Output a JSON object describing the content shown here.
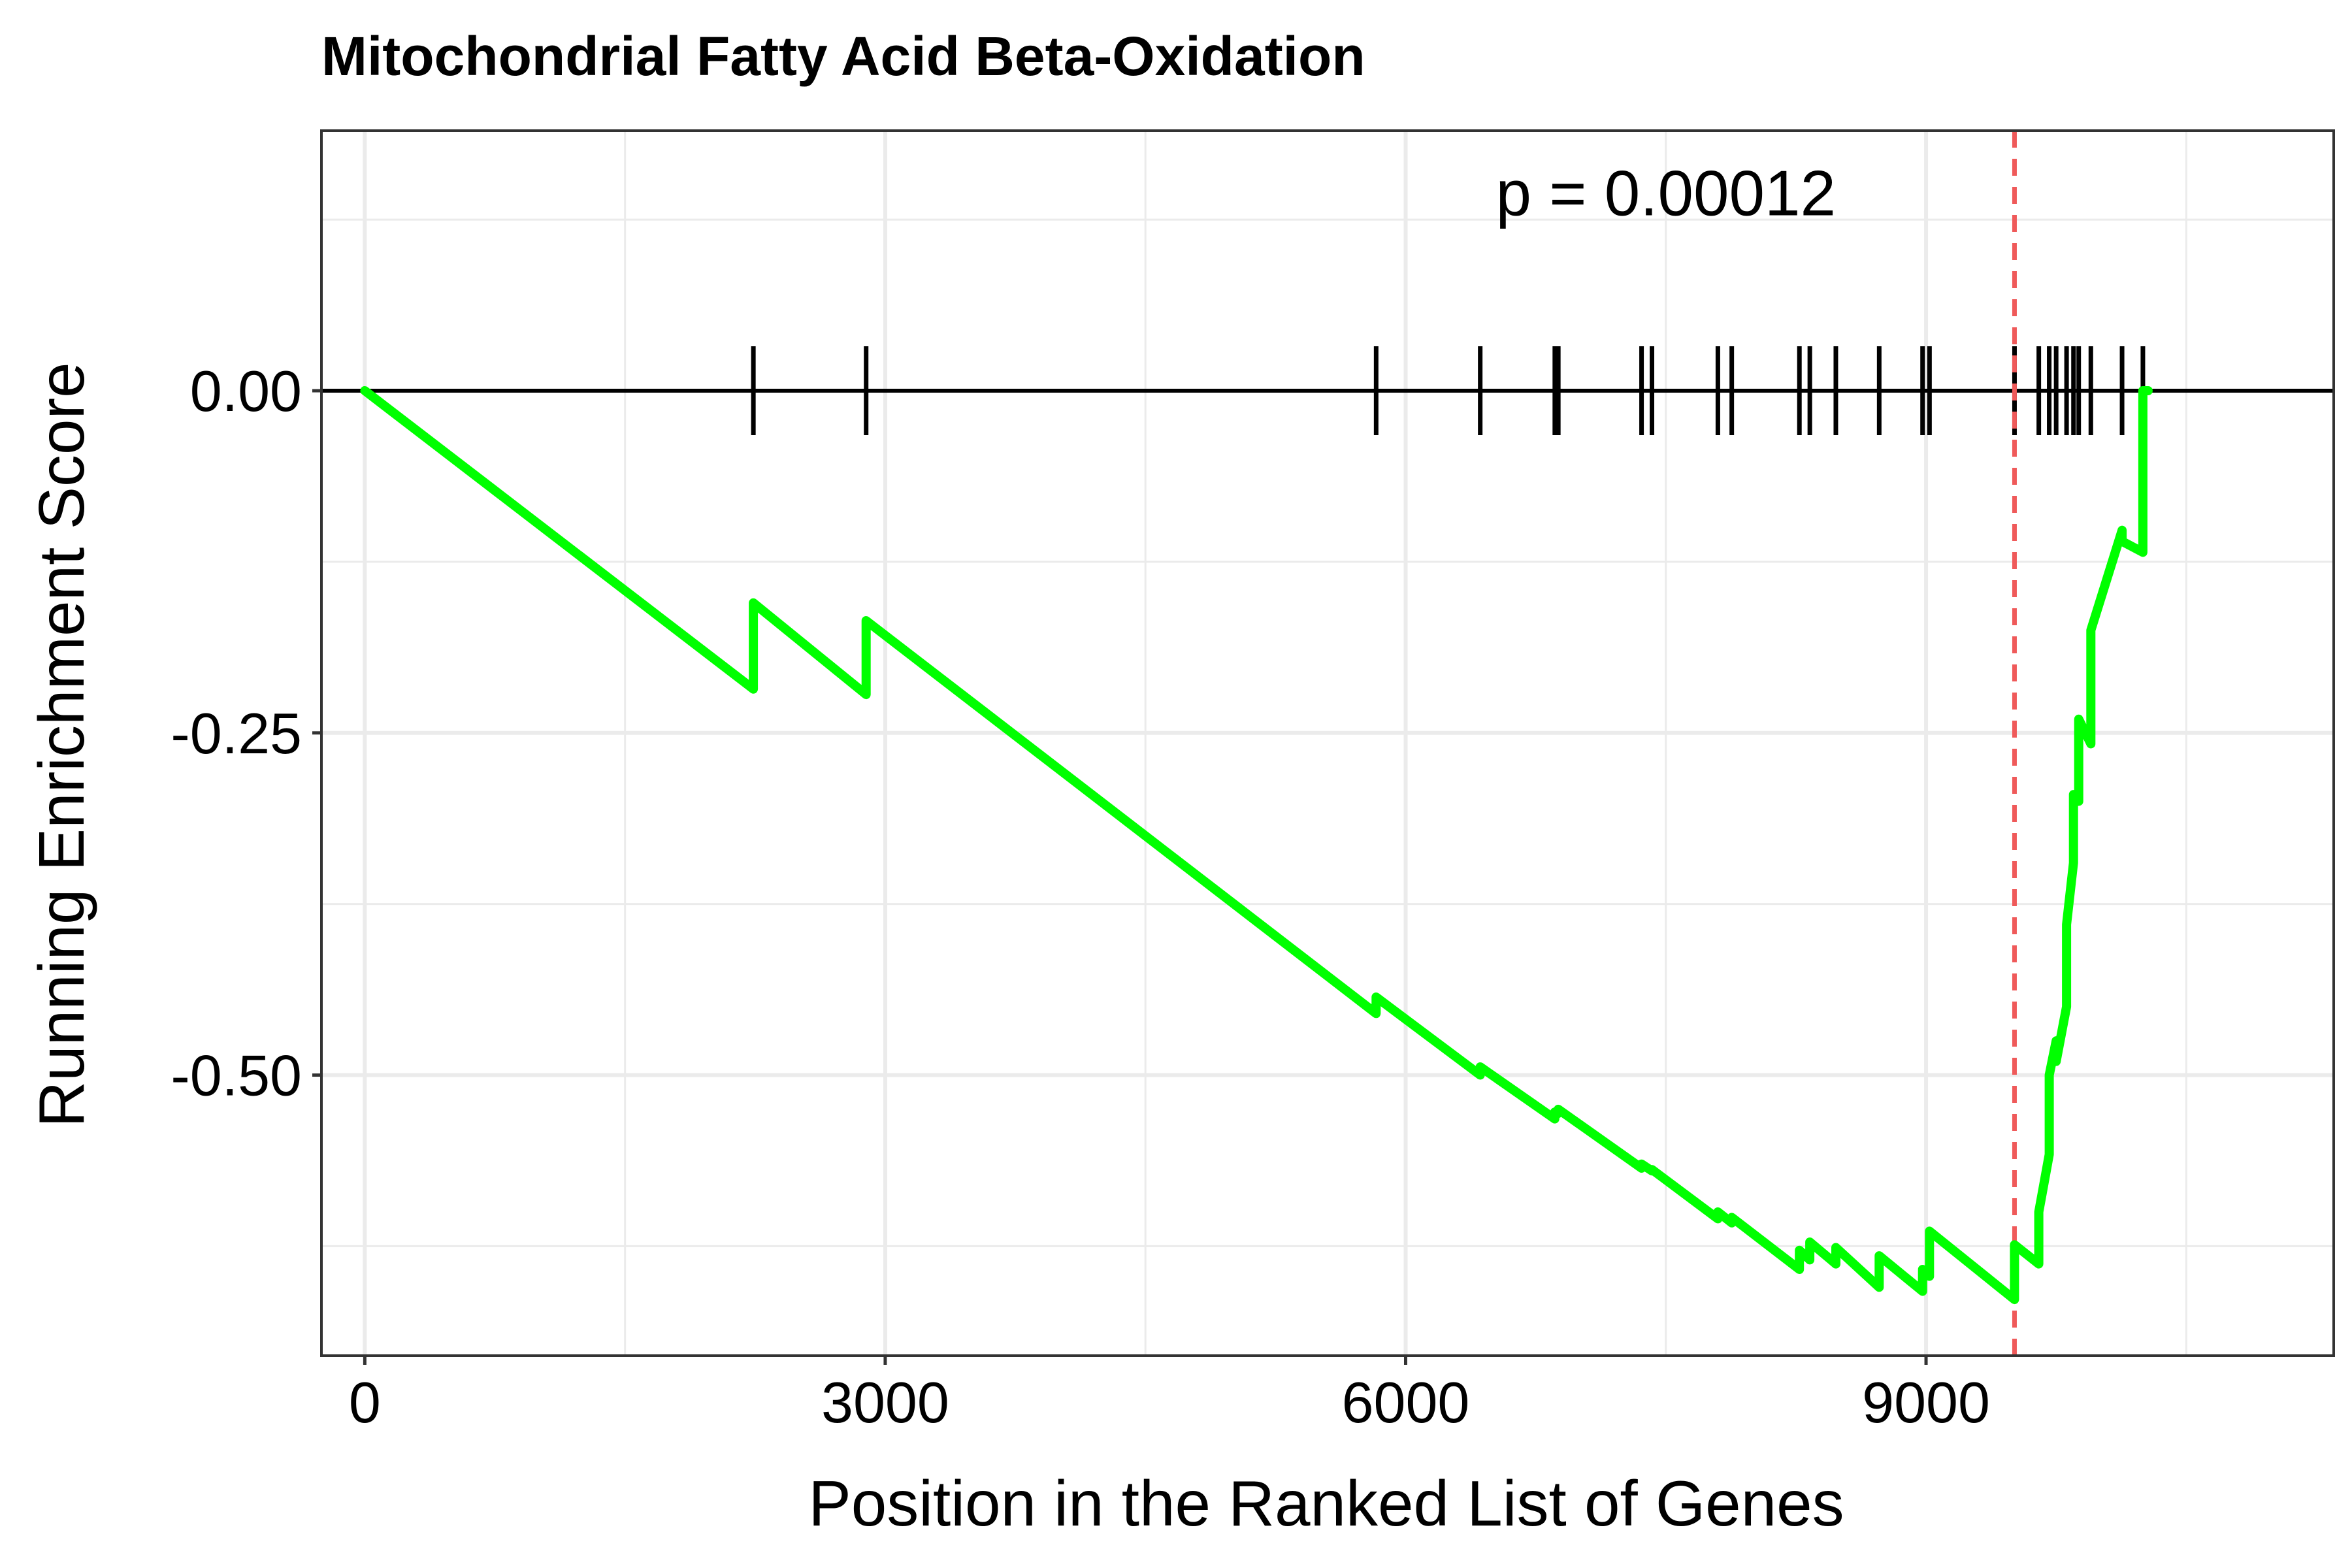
{
  "chart_data": {
    "type": "line",
    "title": "Mitochondrial Fatty Acid Beta-Oxidation",
    "xlabel": "Position in the Ranked List of Genes",
    "ylabel": "Running Enrichment Score",
    "xlim": [
      -250,
      11350
    ],
    "ylim": [
      -0.705,
      0.19
    ],
    "x_ticks": [
      0,
      3000,
      6000,
      9000
    ],
    "x_tick_labels": [
      "0",
      "3000",
      "6000",
      "9000"
    ],
    "y_ticks": [
      0,
      -0.25,
      -0.5
    ],
    "y_tick_labels": [
      "0.00",
      "-0.25",
      "-0.50"
    ],
    "x_minor": [
      1500,
      4500,
      7500,
      10500
    ],
    "y_minor": [
      0.125,
      -0.125,
      -0.375,
      -0.625
    ],
    "grid": true,
    "annotation": "p = 0.00012",
    "annotation_position": [
      7500,
      0.145
    ],
    "zero_line": 0,
    "max_deviation_x": 9510,
    "colors": {
      "line": "#00ff00",
      "dashed": "#ef5a5a",
      "hits": "#000000"
    },
    "hits": [
      2240,
      2890,
      5830,
      6430,
      6860,
      6880,
      7360,
      7420,
      7800,
      7880,
      8270,
      8330,
      8480,
      8730,
      8980,
      9020,
      9510,
      9650,
      9710,
      9750,
      9810,
      9850,
      9880,
      9950,
      10130,
      10250
    ],
    "series": [
      {
        "x": [
          0,
          2240,
          2240,
          2890,
          2890,
          5830,
          5830,
          6430,
          6430,
          6860,
          6860,
          6880,
          6880,
          7360,
          7360,
          7420,
          7420,
          7800,
          7800,
          7880,
          7880,
          8270,
          8270,
          8330,
          8330,
          8480,
          8480,
          8730,
          8730,
          8980,
          8980,
          9020,
          9020,
          9510,
          9510,
          9650,
          9650,
          9710,
          9710,
          9750,
          9750,
          9810,
          9810,
          9850,
          9850,
          9880,
          9880,
          9950,
          9950,
          10130,
          10130,
          10250,
          10250,
          10280
        ],
        "y": [
          0,
          -0.218,
          -0.155,
          -0.222,
          -0.168,
          -0.455,
          -0.443,
          -0.5,
          -0.494,
          -0.532,
          -0.527,
          -0.528,
          -0.525,
          -0.568,
          -0.565,
          -0.57,
          -0.569,
          -0.605,
          -0.6,
          -0.608,
          -0.604,
          -0.642,
          -0.628,
          -0.635,
          -0.622,
          -0.638,
          -0.626,
          -0.655,
          -0.632,
          -0.658,
          -0.642,
          -0.647,
          -0.614,
          -0.664,
          -0.624,
          -0.638,
          -0.6,
          -0.558,
          -0.5,
          -0.475,
          -0.49,
          -0.45,
          -0.39,
          -0.345,
          -0.295,
          -0.3,
          -0.24,
          -0.258,
          -0.175,
          -0.102,
          -0.11,
          -0.118,
          0,
          0
        ]
      }
    ]
  }
}
